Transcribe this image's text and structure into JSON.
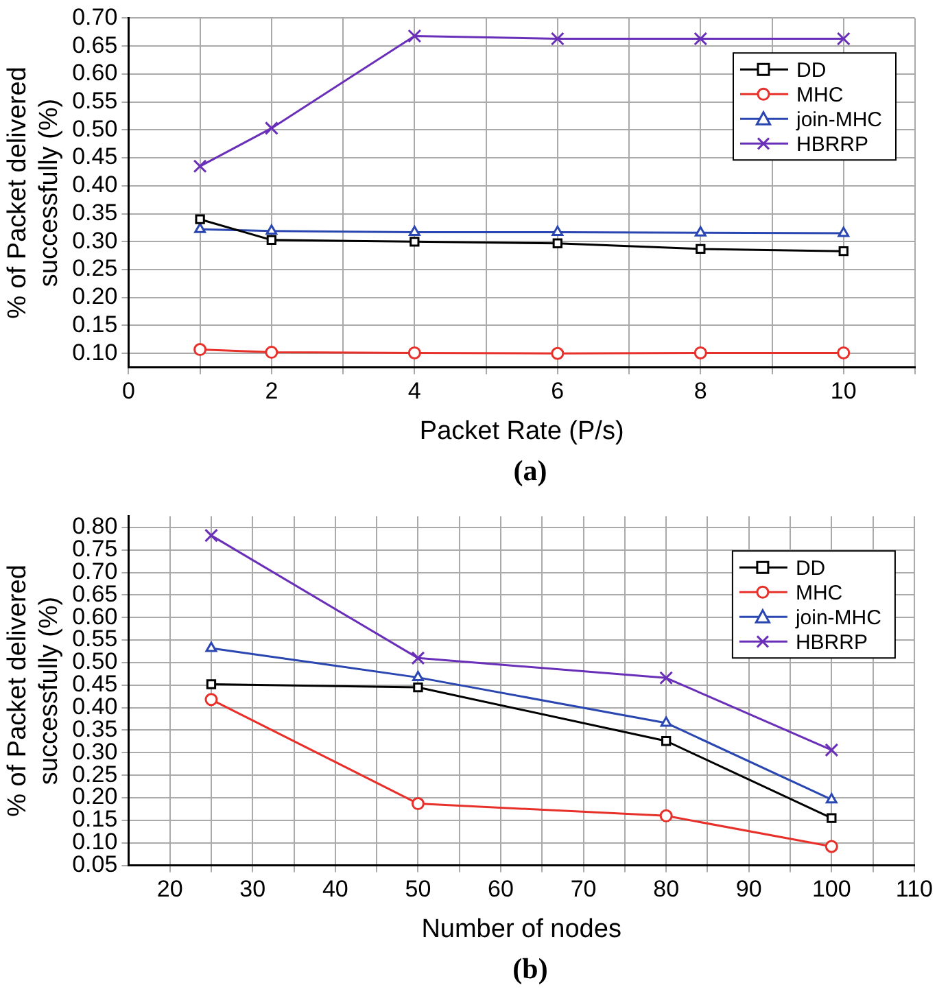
{
  "chart_data": [
    {
      "type": "line",
      "xlabel": "Packet Rate (P/s)",
      "ylabel": "% of Packet delivered\nsuccessfully (%)",
      "annotations": [
        "(a)"
      ],
      "x": [
        1,
        2,
        4,
        6,
        8,
        10
      ],
      "series": [
        {
          "name": "DD",
          "color": "#000000",
          "marker": "square",
          "values": [
            0.34,
            0.303,
            0.3,
            0.297,
            0.287,
            0.283
          ]
        },
        {
          "name": "MHC",
          "color": "#e8302a",
          "marker": "circle",
          "values": [
            0.107,
            0.102,
            0.101,
            0.1,
            0.101,
            0.101
          ]
        },
        {
          "name": "join-MHC",
          "color": "#2a46b0",
          "marker": "triangle",
          "values": [
            0.322,
            0.319,
            0.317,
            0.317,
            0.316,
            0.315
          ]
        },
        {
          "name": "HBRRP",
          "color": "#6a2fb8",
          "marker": "cross",
          "values": [
            0.435,
            0.503,
            0.668,
            0.663,
            0.663,
            0.663
          ]
        }
      ],
      "xlim": [
        0,
        11
      ],
      "xticks": [
        0,
        {
          "value": 1,
          "label": null
        },
        2,
        {
          "value": 3,
          "label": null
        },
        4,
        {
          "value": 5,
          "label": null
        },
        6,
        {
          "value": 7,
          "label": null
        },
        8,
        {
          "value": 9,
          "label": null
        },
        10,
        {
          "value": 11,
          "label": null
        }
      ],
      "ylim": [
        0.075,
        0.7
      ],
      "yticks": [
        {
          "value": 0.1,
          "label": "0.10"
        },
        0.15,
        {
          "value": 0.2,
          "label": "0.20"
        },
        0.25,
        {
          "value": 0.3,
          "label": "0.30"
        },
        0.35,
        {
          "value": 0.4,
          "label": "0.40"
        },
        0.45,
        {
          "value": 0.5,
          "label": "0.50"
        },
        0.55,
        {
          "value": 0.6,
          "label": "0.60"
        },
        0.65,
        {
          "value": 0.7,
          "label": "0.70"
        }
      ],
      "grid": true,
      "legend": "top right",
      "line_style": "solid"
    },
    {
      "type": "line",
      "xlabel": "Number of nodes",
      "ylabel": "% of Packet delivered\nsuccessfully (%)",
      "annotations": [
        "(b)"
      ],
      "x": [
        25,
        50,
        80,
        100
      ],
      "series": [
        {
          "name": "DD",
          "color": "#000000",
          "marker": "square",
          "values": [
            0.452,
            0.445,
            0.326,
            0.155
          ]
        },
        {
          "name": "MHC",
          "color": "#e8302a",
          "marker": "circle",
          "values": [
            0.418,
            0.187,
            0.16,
            0.092
          ]
        },
        {
          "name": "join-MHC",
          "color": "#2a46b0",
          "marker": "triangle",
          "values": [
            0.532,
            0.467,
            0.366,
            0.196
          ]
        },
        {
          "name": "HBRRP",
          "color": "#6a2fb8",
          "marker": "cross",
          "values": [
            0.782,
            0.51,
            0.466,
            0.306
          ]
        }
      ],
      "xlim": [
        15,
        110
      ],
      "xticks": [
        20,
        {
          "value": 25,
          "label": null
        },
        30,
        {
          "value": 35,
          "label": null
        },
        40,
        {
          "value": 45,
          "label": null
        },
        50,
        {
          "value": 55,
          "label": null
        },
        60,
        {
          "value": 65,
          "label": null
        },
        70,
        {
          "value": 75,
          "label": null
        },
        80,
        {
          "value": 85,
          "label": null
        },
        90,
        {
          "value": 95,
          "label": null
        },
        100,
        {
          "value": 105,
          "label": null
        },
        110
      ],
      "ylim": [
        0.05,
        0.825
      ],
      "yticks": [
        0.05,
        {
          "value": 0.1,
          "label": "0.10"
        },
        0.15,
        {
          "value": 0.2,
          "label": "0.20"
        },
        0.25,
        {
          "value": 0.3,
          "label": "0.30"
        },
        0.35,
        {
          "value": 0.4,
          "label": "0.40"
        },
        0.45,
        {
          "value": 0.5,
          "label": "0.50"
        },
        0.55,
        {
          "value": 0.6,
          "label": "0.60"
        },
        0.65,
        {
          "value": 0.7,
          "label": "0.70"
        },
        0.75,
        {
          "value": 0.8,
          "label": "0.80"
        }
      ],
      "grid": true,
      "legend": "top right",
      "line_style": "solid"
    }
  ]
}
